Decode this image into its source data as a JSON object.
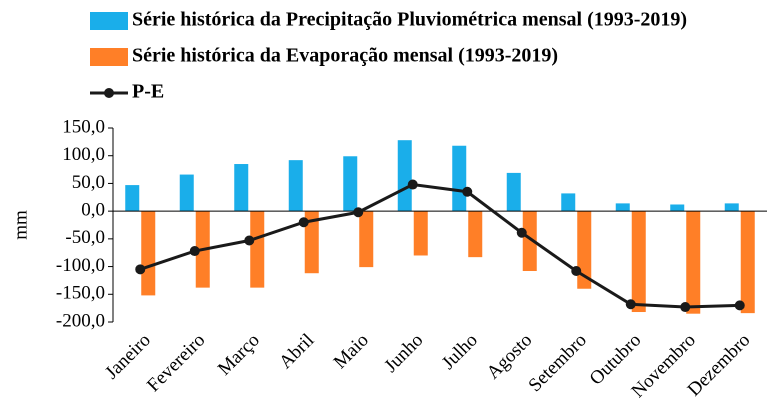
{
  "chart_data": {
    "type": "bar_line",
    "y_label": "mm",
    "categories": [
      "Janeiro",
      "Fevereiro",
      "Março",
      "Abril",
      "Maio",
      "Junho",
      "Julho",
      "Agosto",
      "Setembro",
      "Outubro",
      "Novembro",
      "Dezembro"
    ],
    "series": [
      {
        "name": "Série histórica da Precipitação Pluviométrica mensal (1993-2019)",
        "color": "#1aaeea",
        "type": "bar",
        "values": [
          47,
          66,
          85,
          92,
          99,
          128,
          118,
          69,
          32,
          14,
          12,
          14
        ]
      },
      {
        "name": "Série histórica da Evaporação mensal (1993-2019)",
        "color": "#ff7f27",
        "type": "bar",
        "values": [
          -152,
          -138,
          -138,
          -112,
          -101,
          -80,
          -83,
          -108,
          -140,
          -182,
          -185,
          -184
        ]
      },
      {
        "name": "P-E",
        "color": "#1a1a1a",
        "type": "line",
        "values": [
          -105,
          -72,
          -53,
          -20,
          -2,
          48,
          35,
          -39,
          -108,
          -168,
          -173,
          -170
        ]
      }
    ],
    "ylim": [
      -200,
      150
    ],
    "yticks": [
      {
        "value": 150,
        "label": "150,0"
      },
      {
        "value": 100,
        "label": "100,0"
      },
      {
        "value": 50,
        "label": "50,0"
      },
      {
        "value": 0,
        "label": "0,0"
      },
      {
        "value": -50,
        "label": "-50,0"
      },
      {
        "value": -100,
        "label": "-100,0"
      },
      {
        "value": -150,
        "label": "-150,0"
      },
      {
        "value": -200,
        "label": "-200,0"
      }
    ],
    "legend": "top-left"
  }
}
